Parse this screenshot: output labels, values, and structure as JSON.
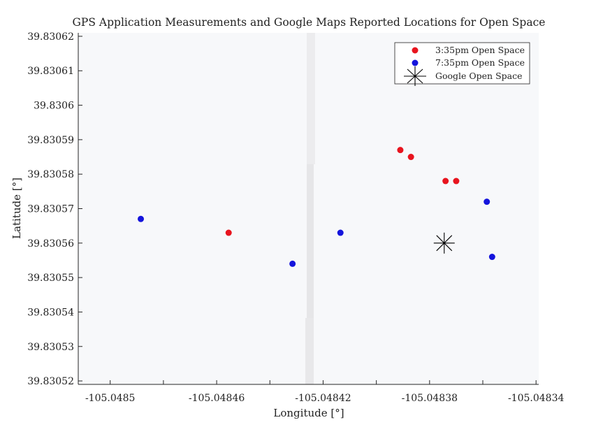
{
  "chart_data": {
    "type": "scatter",
    "title": "GPS Application Measurements and Google Maps Reported Locations for Open Space",
    "xlabel": "Longitude [°]",
    "ylabel": "Latitude [°]",
    "xlim": [
      -105.048512,
      -105.048339
    ],
    "ylim": [
      39.830519,
      39.830621
    ],
    "xticks": [
      -105.0485,
      -105.04848,
      -105.04846,
      -105.04844,
      -105.04842,
      -105.0484,
      -105.04838,
      -105.04836,
      -105.04834
    ],
    "xtick_labels": [
      "-105.0485",
      "",
      "-105.04846",
      "",
      "-105.04842",
      "",
      "-105.04838",
      "",
      "-105.04834"
    ],
    "yticks": [
      39.83052,
      39.83053,
      39.83054,
      39.83055,
      39.83056,
      39.83057,
      39.83058,
      39.83059,
      39.8306,
      39.83061,
      39.83062
    ],
    "ytick_labels": [
      "39.83052",
      "39.83053",
      "39.83054",
      "39.83055",
      "39.83056",
      "39.83057",
      "39.83058",
      "39.83059",
      "39.8306",
      "39.83061",
      "39.83062"
    ],
    "grid": false,
    "legend_position": "top-right",
    "series": [
      {
        "name": "3:35pm Open Space",
        "color": "#e8141e",
        "marker": "circle",
        "points": [
          {
            "x": -105.0484555,
            "y": 39.830563
          },
          {
            "x": -105.048391,
            "y": 39.830587
          },
          {
            "x": -105.048387,
            "y": 39.830585
          },
          {
            "x": -105.048374,
            "y": 39.830578
          },
          {
            "x": -105.04837,
            "y": 39.830578
          }
        ]
      },
      {
        "name": "7:35pm Open Space",
        "color": "#1414dc",
        "marker": "circle",
        "points": [
          {
            "x": -105.0484885,
            "y": 39.830567
          },
          {
            "x": -105.0484315,
            "y": 39.830554
          },
          {
            "x": -105.0484135,
            "y": 39.830563
          },
          {
            "x": -105.0483585,
            "y": 39.830572
          },
          {
            "x": -105.0483565,
            "y": 39.830556
          }
        ]
      },
      {
        "name": "Google Open Space",
        "color": "#000000",
        "marker": "asterisk",
        "points": [
          {
            "x": -105.0483745,
            "y": 39.83056
          }
        ]
      }
    ]
  }
}
